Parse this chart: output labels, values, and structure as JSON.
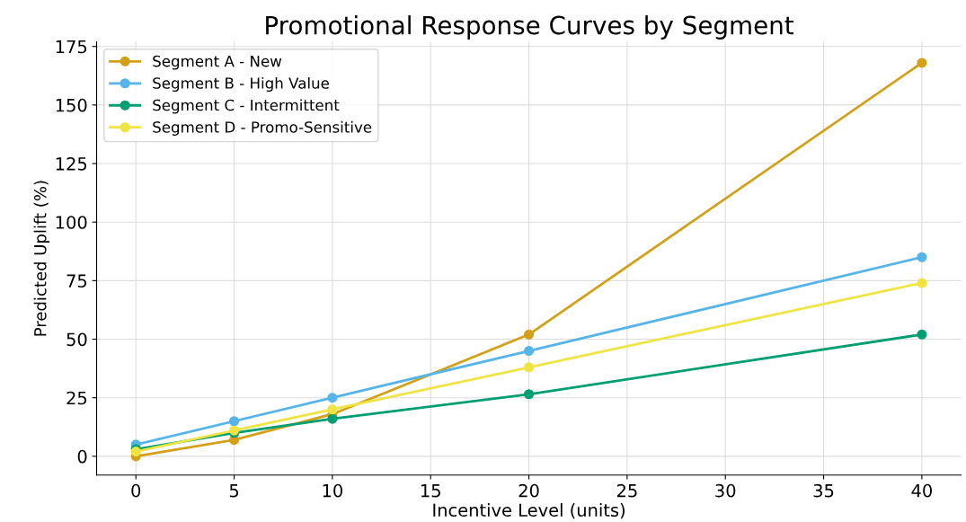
{
  "chart_data": {
    "type": "line",
    "title": "Promotional Response Curves by Segment",
    "xlabel": "Incentive Level (units)",
    "ylabel": "Predicted Uplift (%)",
    "x": [
      0,
      5,
      10,
      20,
      40
    ],
    "series": [
      {
        "name": "Segment A - New",
        "color": "#d4a017",
        "values": [
          0,
          7,
          18,
          52,
          168
        ]
      },
      {
        "name": "Segment B - High Value",
        "color": "#56b4e9",
        "values": [
          5,
          15,
          25,
          45,
          85
        ]
      },
      {
        "name": "Segment C - Intermittent",
        "color": "#009e73",
        "values": [
          3,
          10,
          16,
          26.5,
          52
        ]
      },
      {
        "name": "Segment D - Promo-Sensitive",
        "color": "#f0e442",
        "values": [
          2,
          11,
          20,
          38,
          74
        ]
      }
    ],
    "xlim": [
      -2,
      42
    ],
    "xticks": [
      0,
      5,
      10,
      15,
      20,
      25,
      30,
      35,
      40
    ],
    "ylim": [
      -8,
      177
    ],
    "yticks": [
      0,
      25,
      50,
      75,
      100,
      125,
      150,
      175
    ],
    "grid": true,
    "legend": "top left",
    "marker": "circle",
    "line_style": "solid"
  }
}
